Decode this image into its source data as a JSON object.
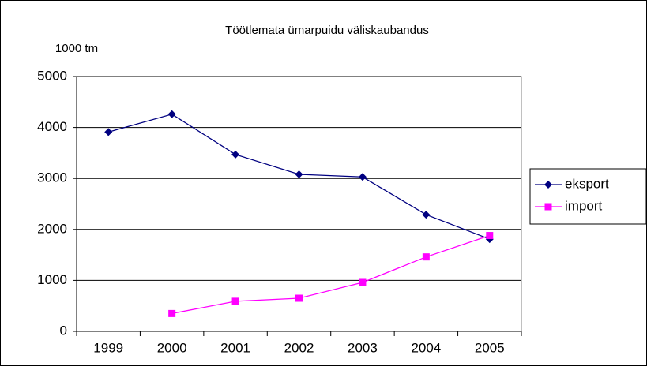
{
  "chart_data": {
    "type": "line",
    "title": "Töötlemata ümarpuidu väliskaubandus",
    "y_label": "1000 tm",
    "categories": [
      "1999",
      "2000",
      "2001",
      "2002",
      "2003",
      "2004",
      "2005"
    ],
    "series": [
      {
        "name": "eksport",
        "color": "#000080",
        "marker": "diamond",
        "values": [
          3910,
          4260,
          3470,
          3080,
          3030,
          2290,
          1810
        ]
      },
      {
        "name": "import",
        "color": "#ff00ff",
        "marker": "square",
        "values": [
          null,
          350,
          590,
          650,
          960,
          1460,
          1880
        ]
      }
    ],
    "ylim": [
      0,
      5000
    ],
    "yticks": [
      0,
      1000,
      2000,
      3000,
      4000,
      5000
    ],
    "grid": true,
    "legend": "right"
  }
}
